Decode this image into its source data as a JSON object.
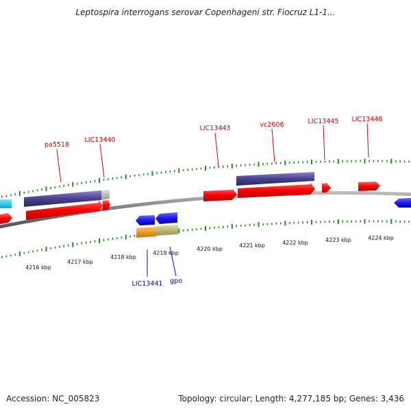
{
  "title": "Leptospira interrogans serovar Copenhageni str. Fiocruz L1-1...",
  "footer": {
    "accession": "Accession: NC_005823",
    "summary": "Topology: circular; Length: 4,277,185 bp; Genes: 3,436"
  },
  "ticks": [
    "4216 kbp",
    "4217 kbp",
    "4218 kbp",
    "4219 kbp",
    "4220 kbp",
    "4221 kbp",
    "4222 kbp",
    "4223 kbp",
    "4224 kbp"
  ],
  "labels_top": [
    "pa5518",
    "LIC13440",
    "LIC13443",
    "vc2606",
    "LIC13445",
    "LIC13446"
  ],
  "labels_bottom": [
    "LIC13441",
    "gpo"
  ],
  "colors": {
    "cds": "#ff0000",
    "gene_top": "#4a4190",
    "gene_blue": "#1a1aee",
    "cyan": "#00c8f0",
    "orange": "#f09010",
    "olive": "#b8b070",
    "tick": "#228822",
    "backbone": "#888888"
  }
}
